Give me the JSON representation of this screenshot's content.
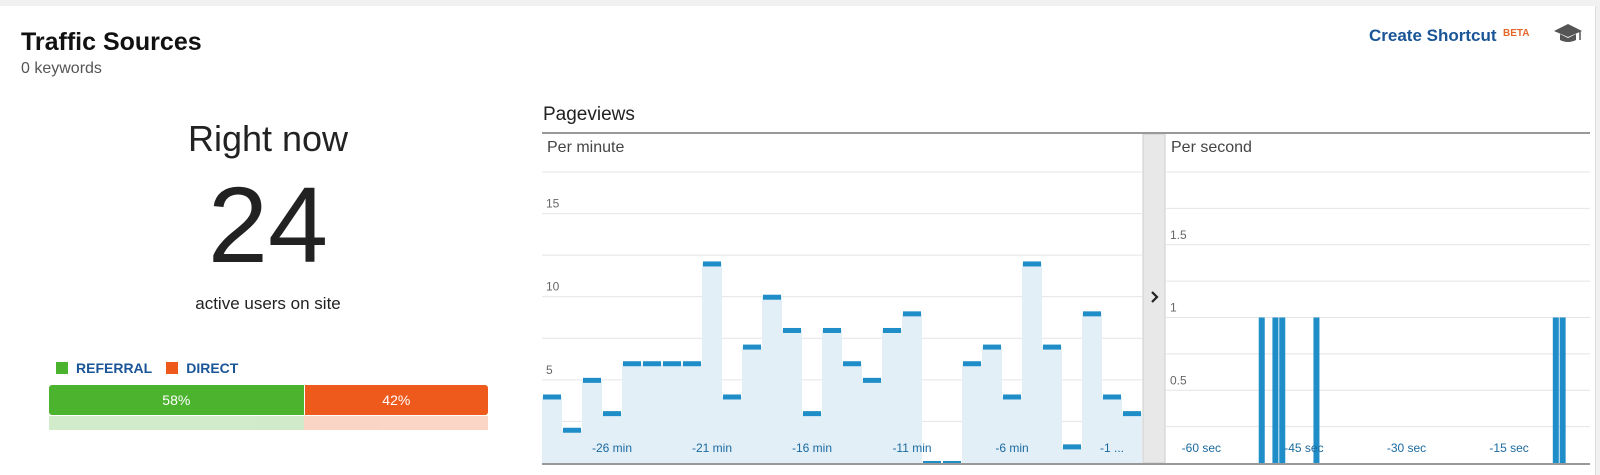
{
  "header": {
    "title": "Traffic Sources",
    "subtitle": "0 keywords",
    "shortcut_label": "Create Shortcut",
    "beta_label": "BETA"
  },
  "summary": {
    "right_now_label": "Right now",
    "active_count": "24",
    "active_label": "active users on site"
  },
  "breakdown": {
    "legend": [
      {
        "label": "REFERRAL",
        "color": "#4cb32f"
      },
      {
        "label": "DIRECT",
        "color": "#ee5a1c"
      }
    ],
    "segments": [
      {
        "name": "referral",
        "percent": 58,
        "label": "58%",
        "color": "#4cb32f"
      },
      {
        "name": "direct",
        "percent": 42,
        "label": "42%",
        "color": "#ee5a1c"
      }
    ]
  },
  "pageviews": {
    "title": "Pageviews",
    "expand_icon": "chevron-right-icon",
    "icons": {
      "shortcut": "graduation-cap-icon"
    }
  },
  "chart_data": [
    {
      "type": "bar",
      "title": "Per minute",
      "xlabel": "",
      "ylabel": "",
      "ylim": [
        0,
        17.5
      ],
      "yticks": [
        5,
        10,
        15
      ],
      "ytick_labels": [
        "5",
        "10",
        "15"
      ],
      "xtick_labels": [
        "-26 min",
        "-21 min",
        "-16 min",
        "-11 min",
        "-6 min",
        "-1 ..."
      ],
      "grid": true,
      "values": [
        4,
        2,
        5,
        3,
        6,
        6,
        6,
        6,
        12,
        4,
        7,
        10,
        8,
        3,
        8,
        6,
        5,
        8,
        9,
        0,
        0,
        6,
        7,
        4,
        12,
        7,
        1,
        9,
        4,
        3
      ],
      "color": "#1f8dc7",
      "fill_color": "#e3eff7"
    },
    {
      "type": "bar",
      "title": "Per second",
      "xlabel": "",
      "ylabel": "",
      "ylim": [
        0,
        2
      ],
      "yticks": [
        0.5,
        1,
        1.5
      ],
      "ytick_labels": [
        "0.5",
        "1",
        "1.5"
      ],
      "xtick_labels": [
        "-60 sec",
        "-45 sec",
        "-30 sec",
        "-15 sec"
      ],
      "grid": true,
      "x": [
        -48,
        -46,
        -45,
        -40,
        -5,
        -4
      ],
      "values": [
        1,
        1,
        1,
        1,
        1,
        1
      ],
      "color": "#1f8dc7"
    }
  ]
}
